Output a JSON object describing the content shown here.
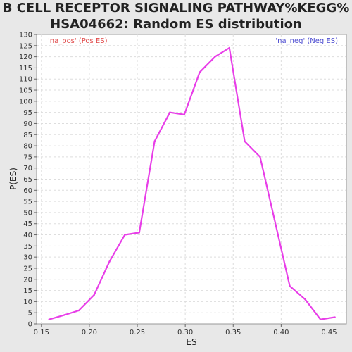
{
  "chart_data": {
    "type": "line",
    "title_lines": [
      "B CELL RECEPTOR SIGNALING PATHWAY%KEGG%",
      "HSA04662: Random ES distribution"
    ],
    "xlabel": "ES",
    "ylabel": "P(ES)",
    "xlim": [
      0.145,
      0.468
    ],
    "ylim": [
      0,
      130
    ],
    "x_ticks": [
      0.15,
      0.2,
      0.25,
      0.3,
      0.35,
      0.4,
      0.45
    ],
    "x_tick_labels": [
      "0.15",
      "0.20",
      "0.25",
      "0.30",
      "0.35",
      "0.40",
      "0.45"
    ],
    "y_ticks": [
      0,
      5,
      10,
      15,
      20,
      25,
      30,
      35,
      40,
      45,
      50,
      55,
      60,
      65,
      70,
      75,
      80,
      85,
      90,
      95,
      100,
      105,
      110,
      115,
      120,
      125,
      130
    ],
    "grid": true,
    "legend": [
      {
        "label": "'na_pos' (Pos ES)",
        "color": "#e04848",
        "placement": "top-left"
      },
      {
        "label": "'na_neg' (Neg ES)",
        "color": "#4a4ad0",
        "placement": "top-right"
      }
    ],
    "series": [
      {
        "color": "#e83ee8",
        "x": [
          0.158,
          0.174,
          0.189,
          0.205,
          0.221,
          0.237,
          0.252,
          0.268,
          0.284,
          0.299,
          0.315,
          0.331,
          0.346,
          0.362,
          0.378,
          0.393,
          0.409,
          0.425,
          0.441,
          0.456
        ],
        "y": [
          2,
          4,
          6,
          13,
          28,
          40,
          41,
          82,
          95,
          94,
          113,
          120,
          124,
          82,
          75,
          47,
          17,
          11,
          2,
          3
        ]
      }
    ]
  }
}
